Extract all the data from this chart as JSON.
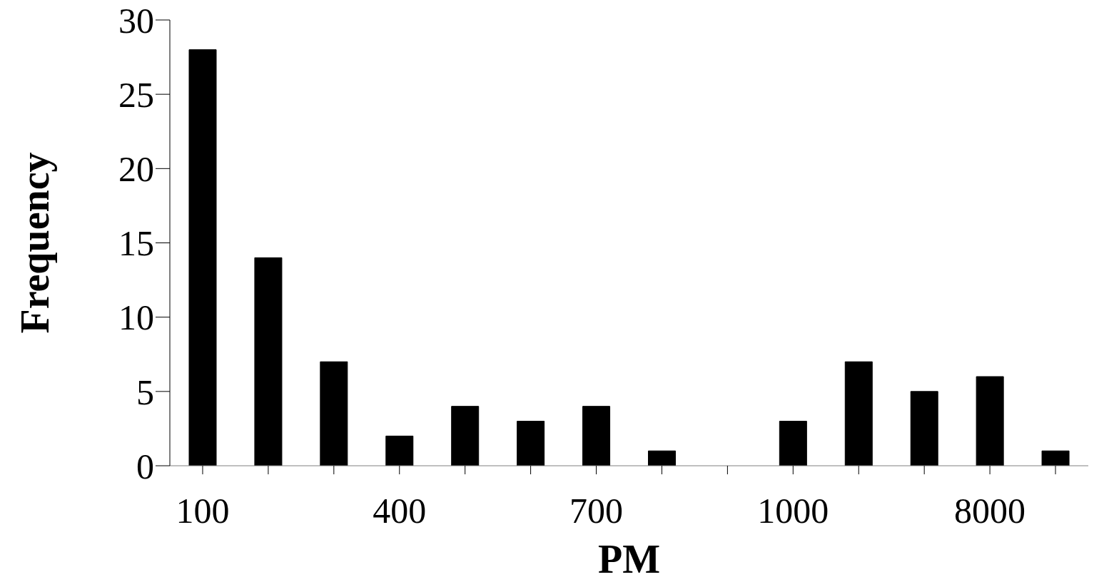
{
  "chart_data": {
    "type": "bar",
    "xlabel": "PM",
    "ylabel": "Frequency",
    "categories": [
      "100",
      null,
      null,
      "400",
      null,
      null,
      "700",
      null,
      null,
      "1000",
      null,
      null,
      "8000",
      null
    ],
    "values": [
      28,
      14,
      7,
      2,
      4,
      3,
      4,
      1,
      0,
      3,
      7,
      5,
      6,
      1
    ],
    "color": "#000000",
    "ylim": [
      0,
      30
    ],
    "yticks": [
      0,
      5,
      10,
      15,
      20,
      25,
      30
    ],
    "grid": false,
    "legend": false
  }
}
